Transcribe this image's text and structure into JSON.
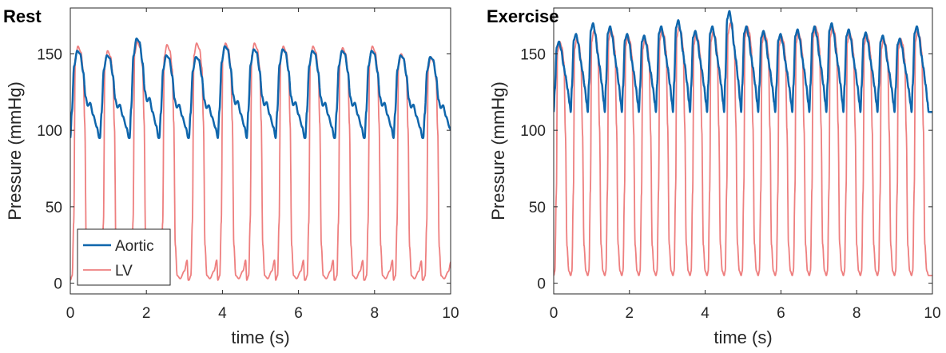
{
  "colors": {
    "aortic": "#0f66ac",
    "lv": "#ee7f7f",
    "axis": "#262626"
  },
  "legend": {
    "position": "bottom-left",
    "panel": 0
  },
  "chart_data": [
    {
      "type": "line",
      "title": "Rest",
      "xlabel": "time (s)",
      "ylabel": "Pressure (mmHg)",
      "xlim": [
        0,
        10
      ],
      "ylim": [
        -7,
        180
      ],
      "xticks": [
        0,
        2,
        4,
        6,
        8,
        10
      ],
      "yticks": [
        0,
        50,
        100,
        150
      ],
      "grid": false,
      "cycle_starts": [
        0.0,
        0.78,
        1.56,
        2.34,
        3.12,
        3.88,
        4.64,
        5.4,
        6.18,
        6.96,
        7.74,
        8.5,
        9.28
      ],
      "cycle_duration": 0.76,
      "series": [
        {
          "name": "Aortic",
          "color": "#0f66ac",
          "width": 2.5,
          "phase": [
            [
              0.0,
              95
            ],
            [
              0.04,
              112
            ],
            [
              0.1,
              142
            ],
            [
              0.18,
              152
            ],
            [
              0.26,
              150
            ],
            [
              0.34,
              138
            ],
            [
              0.4,
              122
            ],
            [
              0.46,
              116
            ],
            [
              0.52,
              118
            ],
            [
              0.6,
              110
            ],
            [
              0.7,
              102
            ],
            [
              0.76,
              95
            ]
          ],
          "peaks": [
            152,
            149,
            160,
            149,
            148,
            155,
            153,
            153,
            152,
            152,
            152,
            149,
            148
          ]
        },
        {
          "name": "LV",
          "color": "#ee7f7f",
          "width": 1.8,
          "phase": [
            [
              0.0,
              2
            ],
            [
              0.05,
              5
            ],
            [
              0.09,
              40
            ],
            [
              0.13,
              148
            ],
            [
              0.2,
              156
            ],
            [
              0.28,
              152
            ],
            [
              0.34,
              140
            ],
            [
              0.38,
              105
            ],
            [
              0.42,
              25
            ],
            [
              0.47,
              5
            ],
            [
              0.55,
              3
            ],
            [
              0.66,
              8
            ],
            [
              0.73,
              15
            ],
            [
              0.76,
              2
            ]
          ],
          "peaks": [
            155,
            152,
            158,
            156,
            157,
            157,
            157,
            155,
            155,
            154,
            155,
            150,
            148
          ]
        }
      ]
    },
    {
      "type": "line",
      "title": "Exercise",
      "xlabel": "time (s)",
      "ylabel": "Pressure (mmHg)",
      "xlim": [
        0,
        10
      ],
      "ylim": [
        -7,
        180
      ],
      "xticks": [
        0,
        2,
        4,
        6,
        8,
        10
      ],
      "yticks": [
        0,
        50,
        100,
        150
      ],
      "grid": false,
      "cycle_starts": [
        0.0,
        0.45,
        0.9,
        1.35,
        1.8,
        2.25,
        2.7,
        3.15,
        3.6,
        4.05,
        4.5,
        4.95,
        5.4,
        5.85,
        6.3,
        6.75,
        7.2,
        7.65,
        8.1,
        8.55,
        9.0,
        9.45
      ],
      "cycle_duration": 0.45,
      "series": [
        {
          "name": "Aortic",
          "color": "#0f66ac",
          "width": 2.5,
          "phase": [
            [
              0.0,
              112
            ],
            [
              0.03,
              128
            ],
            [
              0.08,
              158
            ],
            [
              0.14,
              162
            ],
            [
              0.2,
              156
            ],
            [
              0.26,
              145
            ],
            [
              0.31,
              138
            ],
            [
              0.37,
              128
            ],
            [
              0.42,
              118
            ],
            [
              0.45,
              112
            ]
          ],
          "peaks": [
            158,
            163,
            170,
            168,
            163,
            162,
            168,
            172,
            165,
            168,
            178,
            168,
            165,
            163,
            166,
            168,
            170,
            166,
            164,
            162,
            160,
            168
          ]
        },
        {
          "name": "LV",
          "color": "#ee7f7f",
          "width": 1.8,
          "phase": [
            [
              0.0,
              5
            ],
            [
              0.03,
              8
            ],
            [
              0.07,
              60
            ],
            [
              0.1,
              155
            ],
            [
              0.16,
              162
            ],
            [
              0.22,
              158
            ],
            [
              0.27,
              148
            ],
            [
              0.31,
              100
            ],
            [
              0.35,
              25
            ],
            [
              0.4,
              8
            ],
            [
              0.45,
              5
            ]
          ],
          "peaks": [
            158,
            160,
            165,
            166,
            162,
            160,
            166,
            168,
            163,
            165,
            170,
            168,
            164,
            162,
            164,
            168,
            168,
            164,
            163,
            160,
            160,
            165
          ]
        }
      ]
    }
  ]
}
